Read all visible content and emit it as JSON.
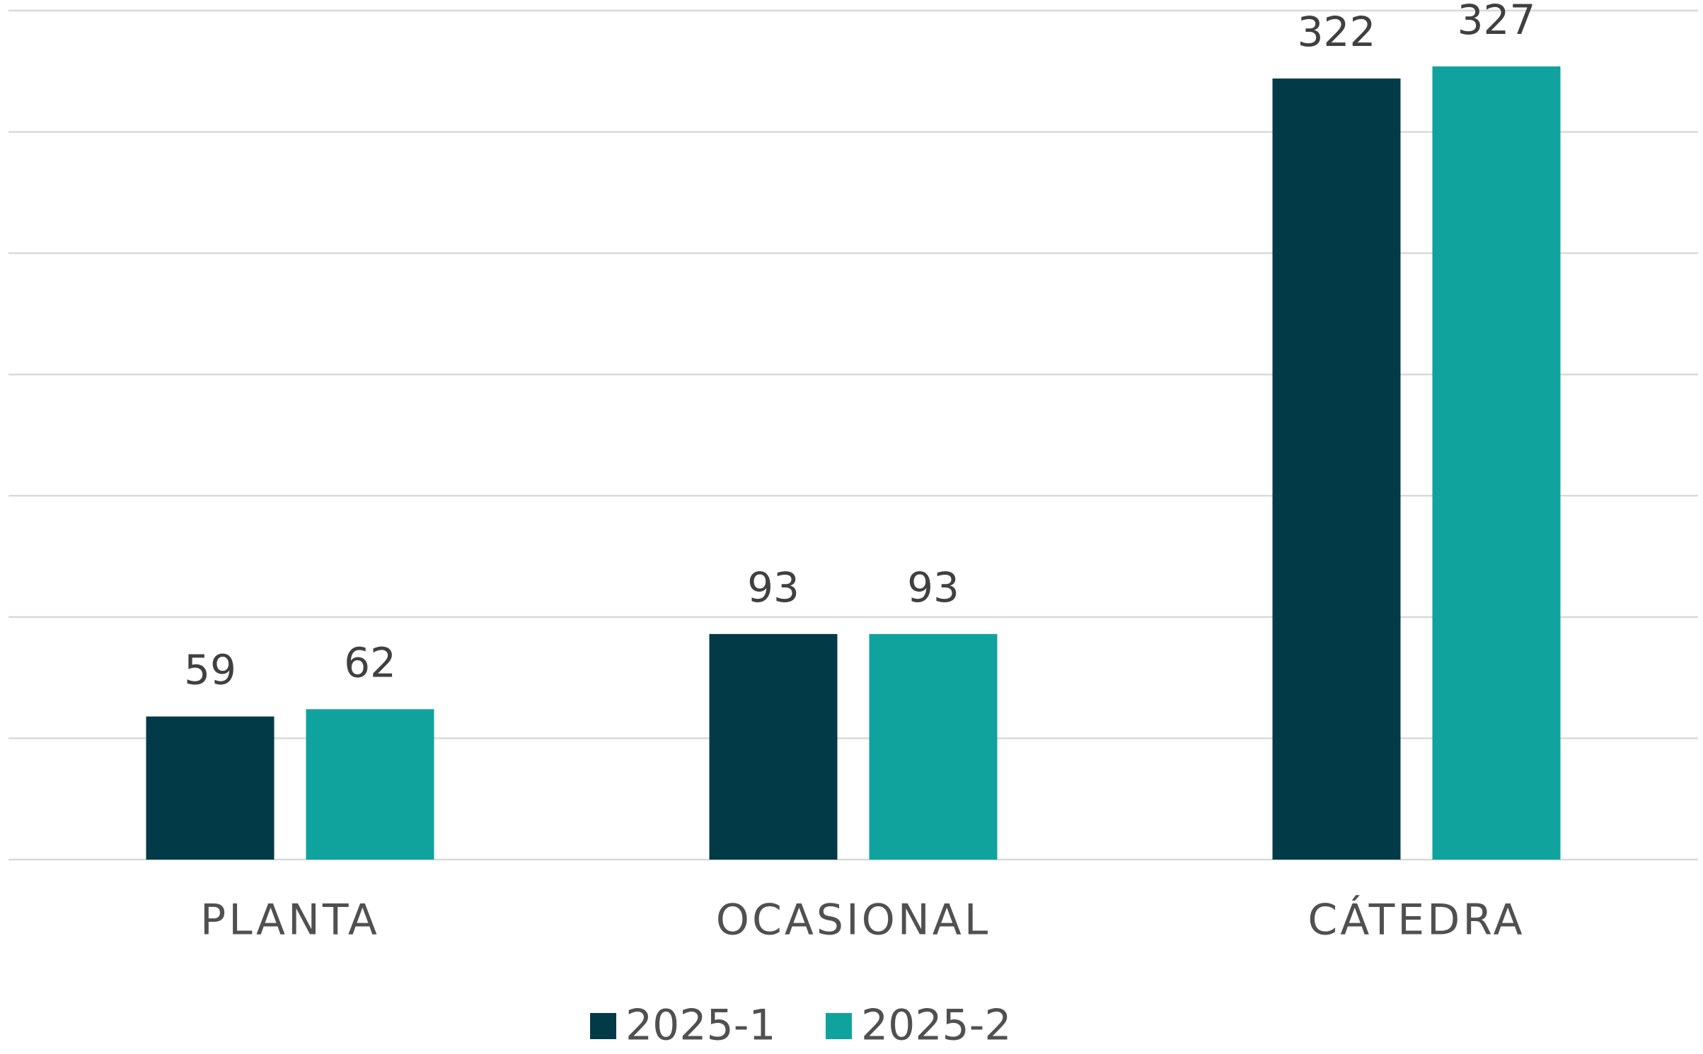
{
  "chart_data": {
    "type": "bar",
    "categories": [
      "PLANTA",
      "OCASIONAL",
      "CÁTEDRA"
    ],
    "series": [
      {
        "name": "2025-1",
        "color": "#023b47",
        "values": [
          59,
          93,
          322
        ]
      },
      {
        "name": "2025-2",
        "color": "#10a39e",
        "values": [
          62,
          93,
          327
        ]
      }
    ],
    "ylim": [
      0,
      350
    ],
    "yticks": [
      0,
      50,
      100,
      150,
      200,
      250,
      300,
      350
    ],
    "grid": true,
    "legend": "bottom"
  }
}
